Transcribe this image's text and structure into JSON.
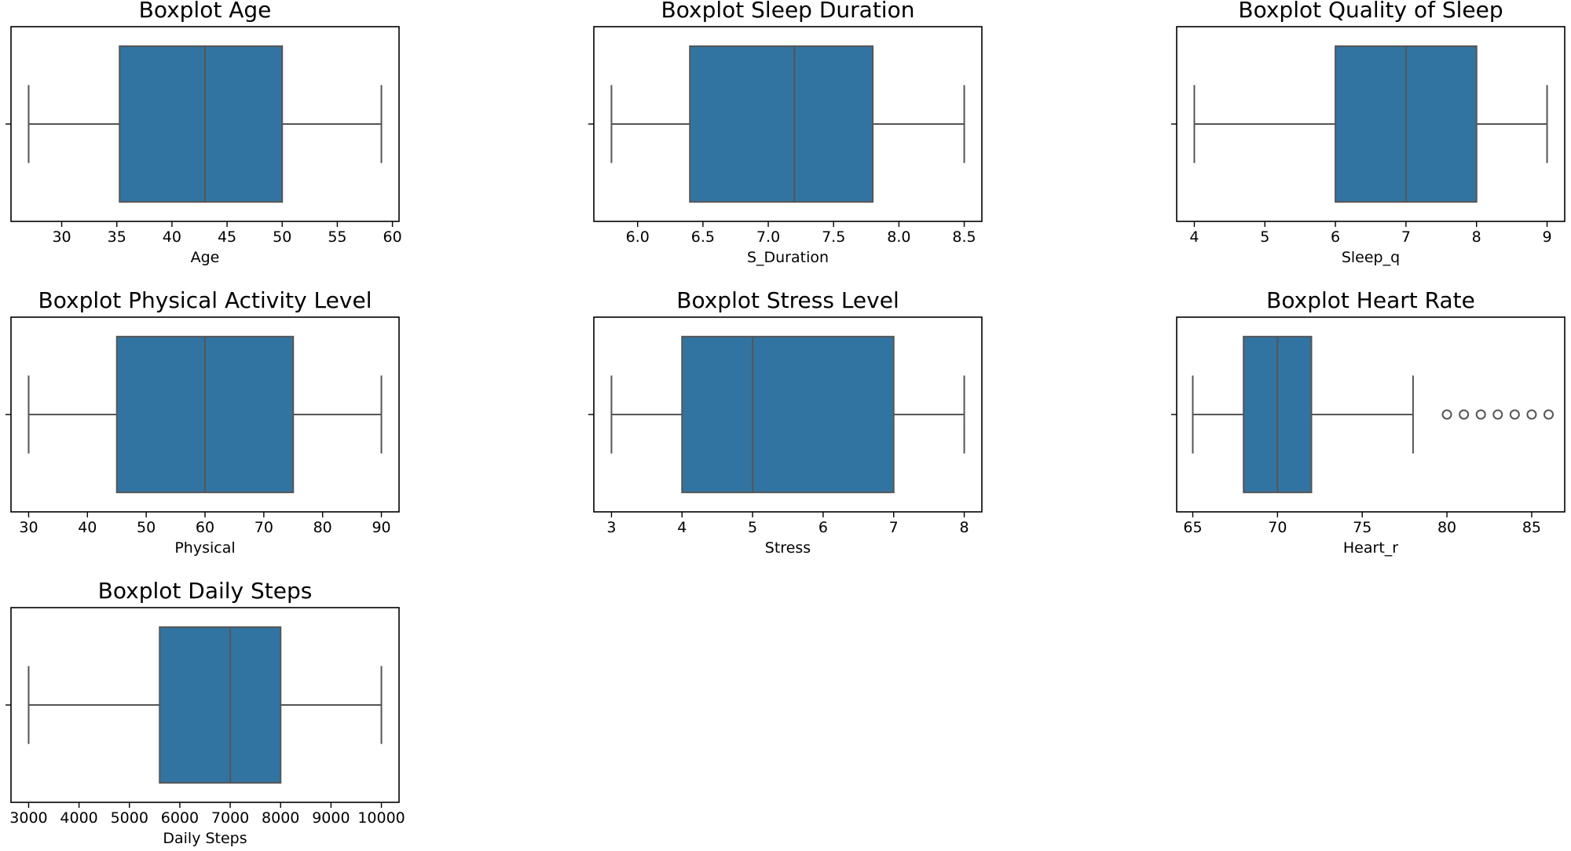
{
  "colors": {
    "box_fill": "#3274a1",
    "line": "#555555",
    "frame": "#000000"
  },
  "chart_data": [
    {
      "type": "boxplot",
      "title": "Boxplot Age",
      "xlabel": "Age",
      "xlim": [
        25.4,
        60.6
      ],
      "ticks": [
        30,
        35,
        40,
        45,
        50,
        55,
        60
      ],
      "tick_labels": [
        "30",
        "35",
        "40",
        "45",
        "50",
        "55",
        "60"
      ],
      "whisker_low": 27,
      "q1": 35.25,
      "median": 43,
      "q3": 50,
      "whisker_high": 59,
      "outliers": []
    },
    {
      "type": "boxplot",
      "title": "Boxplot Sleep Duration",
      "xlabel": "S_Duration",
      "xlim": [
        5.665,
        8.635
      ],
      "ticks": [
        6.0,
        6.5,
        7.0,
        7.5,
        8.0,
        8.5
      ],
      "tick_labels": [
        "6.0",
        "6.5",
        "7.0",
        "7.5",
        "8.0",
        "8.5"
      ],
      "whisker_low": 5.8,
      "q1": 6.4,
      "median": 7.2,
      "q3": 7.8,
      "whisker_high": 8.5,
      "outliers": []
    },
    {
      "type": "boxplot",
      "title": "Boxplot Quality of Sleep",
      "xlabel": "Sleep_q",
      "xlim": [
        3.75,
        9.25
      ],
      "ticks": [
        4,
        5,
        6,
        7,
        8,
        9
      ],
      "tick_labels": [
        "4",
        "5",
        "6",
        "7",
        "8",
        "9"
      ],
      "whisker_low": 4,
      "q1": 6,
      "median": 7,
      "q3": 8,
      "whisker_high": 9,
      "outliers": []
    },
    {
      "type": "boxplot",
      "title": "Boxplot Physical Activity Level",
      "xlabel": "Physical",
      "xlim": [
        27,
        93
      ],
      "ticks": [
        30,
        40,
        50,
        60,
        70,
        80,
        90
      ],
      "tick_labels": [
        "30",
        "40",
        "50",
        "60",
        "70",
        "80",
        "90"
      ],
      "whisker_low": 30,
      "q1": 45,
      "median": 60,
      "q3": 75,
      "whisker_high": 90,
      "outliers": []
    },
    {
      "type": "boxplot",
      "title": "Boxplot Stress Level",
      "xlabel": "Stress",
      "xlim": [
        2.75,
        8.25
      ],
      "ticks": [
        3,
        4,
        5,
        6,
        7,
        8
      ],
      "tick_labels": [
        "3",
        "4",
        "5",
        "6",
        "7",
        "8"
      ],
      "whisker_low": 3,
      "q1": 4,
      "median": 5,
      "q3": 7,
      "whisker_high": 8,
      "outliers": []
    },
    {
      "type": "boxplot",
      "title": "Boxplot Heart Rate",
      "xlabel": "Heart_r",
      "xlim": [
        64.05,
        86.95
      ],
      "ticks": [
        65,
        70,
        75,
        80,
        85
      ],
      "tick_labels": [
        "65",
        "70",
        "75",
        "80",
        "85"
      ],
      "whisker_low": 65,
      "q1": 68,
      "median": 70,
      "q3": 72,
      "whisker_high": 78,
      "outliers": [
        80,
        81,
        82,
        83,
        84,
        85,
        86
      ]
    },
    {
      "type": "boxplot",
      "title": "Boxplot Daily Steps",
      "xlabel": "Daily Steps",
      "xlim": [
        2650,
        10350
      ],
      "ticks": [
        3000,
        4000,
        5000,
        6000,
        7000,
        8000,
        9000,
        10000
      ],
      "tick_labels": [
        "3000",
        "4000",
        "5000",
        "6000",
        "7000",
        "8000",
        "9000",
        "10000"
      ],
      "whisker_low": 3000,
      "q1": 5600,
      "median": 7000,
      "q3": 8000,
      "whisker_high": 10000,
      "outliers": []
    }
  ]
}
